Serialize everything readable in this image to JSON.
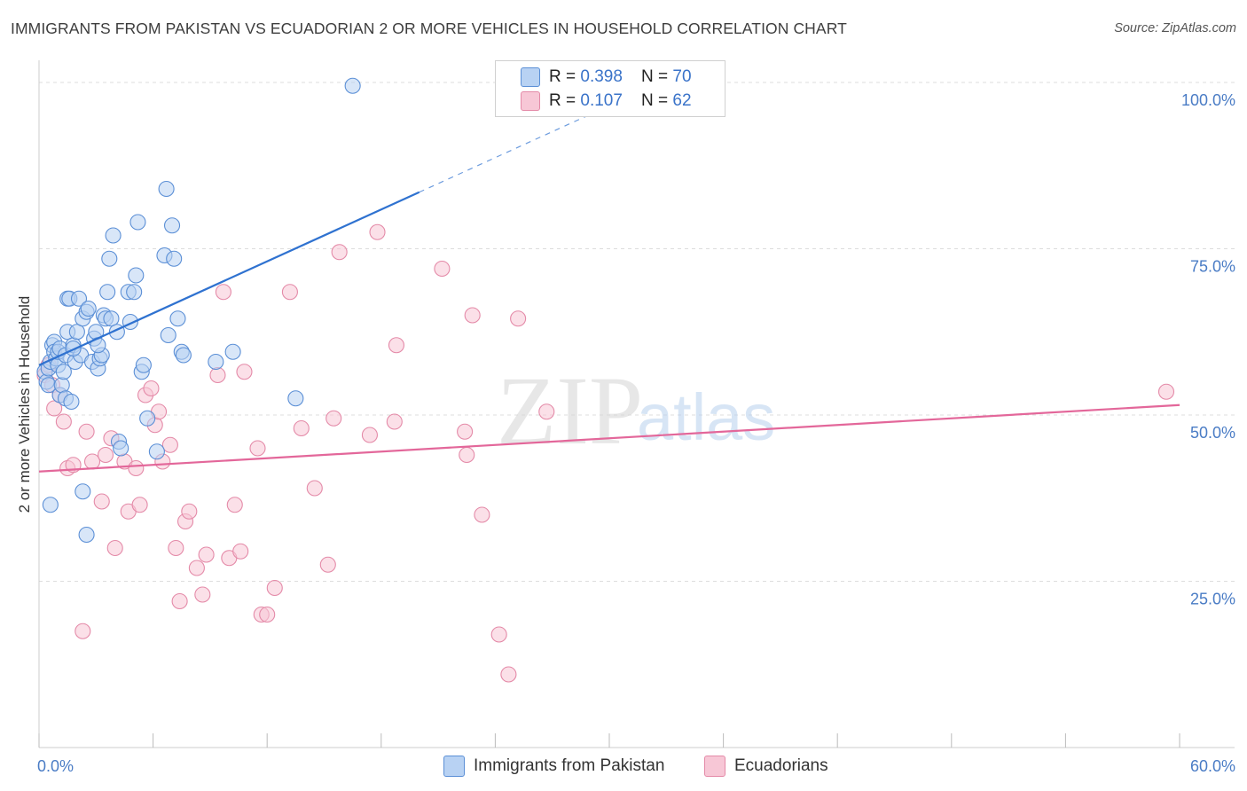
{
  "title": "IMMIGRANTS FROM PAKISTAN VS ECUADORIAN 2 OR MORE VEHICLES IN HOUSEHOLD CORRELATION CHART",
  "source": "Source: ZipAtlas.com",
  "watermark": {
    "zip": "ZIP",
    "atlas": "atlas"
  },
  "colors": {
    "blue_fill": "#b8d2f3",
    "blue_stroke": "#5b8fd6",
    "blue_line": "#2f72d0",
    "pink_fill": "#f7c7d6",
    "pink_stroke": "#e48aa8",
    "pink_line": "#e3679a",
    "grid": "#dddddd",
    "tick_label": "#4a7cc5"
  },
  "legend": {
    "rows": [
      {
        "r_label": "R = ",
        "r_value": "0.398",
        "n_label": "N = ",
        "n_value": "70"
      },
      {
        "r_label": "R = ",
        "r_value": "0.107",
        "n_label": "N = ",
        "n_value": "62"
      }
    ]
  },
  "bottom_legend": [
    "Immigrants from Pakistan",
    "Ecuadorians"
  ],
  "chart_data": {
    "type": "scatter",
    "xlabel": "",
    "ylabel": "2 or more Vehicles in Household",
    "xlim": [
      0,
      60
    ],
    "ylim": [
      0,
      102
    ],
    "x_tick_labels": [
      "0.0%",
      "60.0%"
    ],
    "y_ticks": [
      25,
      50,
      75,
      100
    ],
    "y_tick_labels": [
      "25.0%",
      "50.0%",
      "75.0%",
      "100.0%"
    ],
    "series": [
      {
        "name": "Immigrants from Pakistan",
        "R": 0.398,
        "N": 70,
        "trend": {
          "x0": 0,
          "y0": 57.5,
          "x1": 20,
          "y1": 83.5,
          "x_ext": 30,
          "y_ext": 96.5
        },
        "points": [
          [
            0.3,
            56.5
          ],
          [
            0.4,
            55
          ],
          [
            0.5,
            54.5
          ],
          [
            0.5,
            57
          ],
          [
            0.6,
            58
          ],
          [
            0.7,
            60.5
          ],
          [
            0.8,
            61
          ],
          [
            0.8,
            59.5
          ],
          [
            0.9,
            58.5
          ],
          [
            1.0,
            57.5
          ],
          [
            1.0,
            59.5
          ],
          [
            1.1,
            60
          ],
          [
            1.1,
            53
          ],
          [
            1.2,
            54.5
          ],
          [
            1.3,
            56.5
          ],
          [
            1.4,
            59
          ],
          [
            1.4,
            52.5
          ],
          [
            1.5,
            62.5
          ],
          [
            1.5,
            67.5
          ],
          [
            1.6,
            67.5
          ],
          [
            1.7,
            52
          ],
          [
            1.8,
            60.5
          ],
          [
            1.9,
            58
          ],
          [
            2.0,
            62.5
          ],
          [
            2.1,
            67.5
          ],
          [
            2.2,
            59
          ],
          [
            2.3,
            64.5
          ],
          [
            2.5,
            65.5
          ],
          [
            2.6,
            66
          ],
          [
            2.8,
            58
          ],
          [
            2.9,
            61.5
          ],
          [
            3.0,
            62.5
          ],
          [
            3.1,
            57
          ],
          [
            3.2,
            58.5
          ],
          [
            3.3,
            59
          ],
          [
            3.4,
            65
          ],
          [
            3.5,
            64.5
          ],
          [
            3.6,
            68.5
          ],
          [
            3.7,
            73.5
          ],
          [
            3.8,
            64.5
          ],
          [
            3.9,
            77
          ],
          [
            4.1,
            62.5
          ],
          [
            4.2,
            46
          ],
          [
            4.3,
            45
          ],
          [
            4.7,
            68.5
          ],
          [
            4.8,
            64
          ],
          [
            5.0,
            68.5
          ],
          [
            5.1,
            71
          ],
          [
            5.2,
            79
          ],
          [
            5.4,
            56.5
          ],
          [
            5.5,
            57.5
          ],
          [
            5.7,
            49.5
          ],
          [
            6.2,
            44.5
          ],
          [
            6.6,
            74
          ],
          [
            6.7,
            84
          ],
          [
            6.8,
            62
          ],
          [
            7.0,
            78.5
          ],
          [
            7.1,
            73.5
          ],
          [
            7.3,
            64.5
          ],
          [
            7.5,
            59.5
          ],
          [
            7.6,
            59
          ],
          [
            9.3,
            58
          ],
          [
            10.2,
            59.5
          ],
          [
            13.5,
            52.5
          ],
          [
            16.5,
            99.5
          ],
          [
            2.3,
            38.5
          ],
          [
            2.5,
            32
          ],
          [
            0.6,
            36.5
          ],
          [
            1.8,
            60
          ],
          [
            3.1,
            60.5
          ]
        ]
      },
      {
        "name": "Ecuadorians",
        "R": 0.107,
        "N": 62,
        "trend": {
          "x0": 0,
          "y0": 41.5,
          "x1": 60,
          "y1": 51.5
        },
        "points": [
          [
            0.3,
            56
          ],
          [
            0.5,
            57.5
          ],
          [
            0.7,
            54.5
          ],
          [
            0.8,
            51
          ],
          [
            1.1,
            53
          ],
          [
            1.3,
            49
          ],
          [
            1.5,
            42
          ],
          [
            1.8,
            42.5
          ],
          [
            2.3,
            17.5
          ],
          [
            2.5,
            47.5
          ],
          [
            2.8,
            43
          ],
          [
            3.3,
            37
          ],
          [
            3.5,
            44
          ],
          [
            3.8,
            46.5
          ],
          [
            4.0,
            30
          ],
          [
            4.5,
            43
          ],
          [
            4.7,
            35.5
          ],
          [
            5.1,
            42
          ],
          [
            5.3,
            36.5
          ],
          [
            5.6,
            53
          ],
          [
            5.9,
            54
          ],
          [
            6.1,
            48.5
          ],
          [
            6.3,
            50.5
          ],
          [
            6.5,
            43
          ],
          [
            6.9,
            45.5
          ],
          [
            7.2,
            30
          ],
          [
            7.4,
            22
          ],
          [
            7.7,
            34
          ],
          [
            7.9,
            35.5
          ],
          [
            8.3,
            27
          ],
          [
            8.6,
            23
          ],
          [
            8.8,
            29
          ],
          [
            9.4,
            56
          ],
          [
            9.7,
            68.5
          ],
          [
            10.0,
            28.5
          ],
          [
            10.3,
            36.5
          ],
          [
            10.6,
            29.5
          ],
          [
            10.8,
            56.5
          ],
          [
            11.5,
            45
          ],
          [
            11.7,
            20
          ],
          [
            12.0,
            20
          ],
          [
            12.4,
            24
          ],
          [
            13.2,
            68.5
          ],
          [
            13.8,
            48
          ],
          [
            14.5,
            39
          ],
          [
            15.2,
            27.5
          ],
          [
            15.5,
            49.5
          ],
          [
            15.8,
            74.5
          ],
          [
            17.4,
            47
          ],
          [
            17.8,
            77.5
          ],
          [
            18.7,
            49
          ],
          [
            18.8,
            60.5
          ],
          [
            21.2,
            72
          ],
          [
            22.4,
            47.5
          ],
          [
            22.5,
            44
          ],
          [
            22.8,
            65
          ],
          [
            23.3,
            35
          ],
          [
            24.2,
            17
          ],
          [
            24.7,
            11
          ],
          [
            25.2,
            64.5
          ],
          [
            26.7,
            50.5
          ],
          [
            59.3,
            53.5
          ]
        ]
      }
    ]
  }
}
